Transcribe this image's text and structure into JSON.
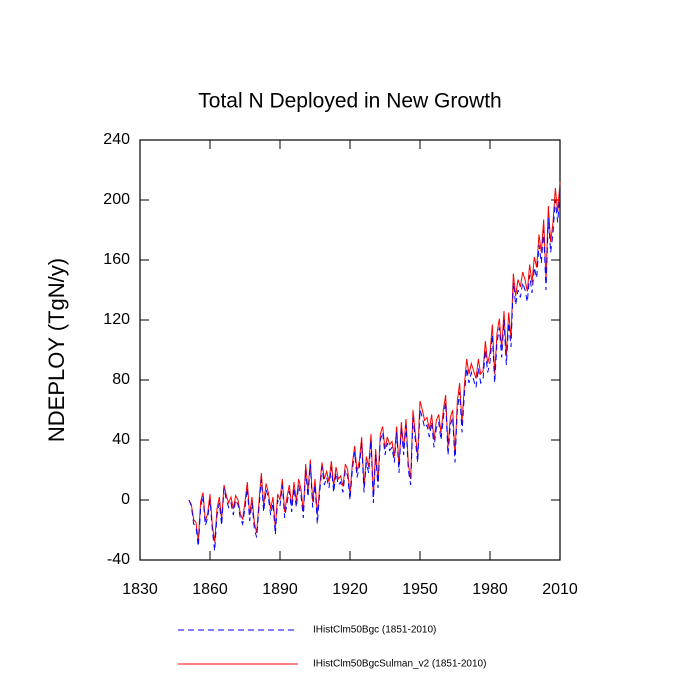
{
  "chart_data": {
    "type": "line",
    "title": "Total N Deployed in New Growth",
    "y_label": "NDEPLOY  (TgN/y)",
    "x": [
      1851,
      1852,
      1853,
      1854,
      1855,
      1856,
      1857,
      1858,
      1859,
      1860,
      1861,
      1862,
      1863,
      1864,
      1865,
      1866,
      1867,
      1868,
      1869,
      1870,
      1871,
      1872,
      1873,
      1874,
      1875,
      1876,
      1877,
      1878,
      1879,
      1880,
      1881,
      1882,
      1883,
      1884,
      1885,
      1886,
      1887,
      1888,
      1889,
      1890,
      1891,
      1892,
      1893,
      1894,
      1895,
      1896,
      1897,
      1898,
      1899,
      1900,
      1901,
      1902,
      1903,
      1904,
      1905,
      1906,
      1907,
      1908,
      1909,
      1910,
      1911,
      1912,
      1913,
      1914,
      1915,
      1916,
      1917,
      1918,
      1919,
      1920,
      1921,
      1922,
      1923,
      1924,
      1925,
      1926,
      1927,
      1928,
      1929,
      1930,
      1931,
      1932,
      1933,
      1934,
      1935,
      1936,
      1937,
      1938,
      1939,
      1940,
      1941,
      1942,
      1943,
      1944,
      1945,
      1946,
      1947,
      1948,
      1949,
      1950,
      1951,
      1952,
      1953,
      1954,
      1955,
      1956,
      1957,
      1958,
      1959,
      1960,
      1961,
      1962,
      1963,
      1964,
      1965,
      1966,
      1967,
      1968,
      1969,
      1970,
      1971,
      1972,
      1973,
      1974,
      1975,
      1976,
      1977,
      1978,
      1979,
      1980,
      1981,
      1982,
      1983,
      1984,
      1985,
      1986,
      1987,
      1988,
      1989,
      1990,
      1991,
      1992,
      1993,
      1994,
      1995,
      1996,
      1997,
      1998,
      1999,
      2000,
      2001,
      2002,
      2003,
      2004,
      2005,
      2006,
      2007,
      2008,
      2009,
      2010
    ],
    "series": [
      {
        "name": "IHistClm50BgcSulman_v2 (1851-2010)",
        "color": "#ff0000",
        "line_style": "solid",
        "values": [
          0,
          -3,
          -13,
          -15,
          -27,
          -1,
          5,
          -14,
          -9,
          4,
          -17,
          -28,
          -6,
          2,
          -13,
          10,
          3,
          -2,
          2,
          -6,
          3,
          0,
          -9,
          -13,
          -1,
          12,
          -10,
          2,
          -15,
          -22,
          -1,
          18,
          -4,
          11,
          5,
          -6,
          2,
          -19,
          4,
          0,
          14,
          -8,
          2,
          10,
          -4,
          12,
          -1,
          14,
          7,
          -8,
          24,
          6,
          27,
          -1,
          14,
          -10,
          9,
          25,
          14,
          19,
          12,
          26,
          9,
          22,
          14,
          16,
          9,
          24,
          20,
          4,
          24,
          36,
          19,
          26,
          42,
          9,
          29,
          22,
          44,
          2,
          34,
          12,
          44,
          49,
          34,
          42,
          37,
          39,
          29,
          49,
          22,
          52,
          34,
          54,
          24,
          14,
          60,
          44,
          29,
          66,
          60,
          53,
          55,
          47,
          57,
          40,
          53,
          57,
          45,
          60,
          70,
          35,
          55,
          60,
          30,
          66,
          78,
          51,
          76,
          94,
          84,
          91,
          86,
          81,
          94,
          84,
          86,
          106,
          91,
          98,
          117,
          84,
          111,
          121,
          101,
          126,
          96,
          125,
          108,
          151,
          136,
          147,
          142,
          152,
          147,
          139,
          157,
          145,
          162,
          155,
          177,
          165,
          187,
          147,
          196,
          172,
          185,
          208,
          192,
          212
        ]
      },
      {
        "name": "IHistClm50Bgc (1851-2010)",
        "color": "#0000ff",
        "line_style": "dashed",
        "values": [
          0,
          -4,
          -16,
          -18,
          -31,
          -5,
          3,
          -17,
          -12,
          0,
          -20,
          -34,
          -10,
          -2,
          -17,
          8,
          0,
          -5,
          -2,
          -10,
          0,
          -3,
          -12,
          -16,
          -5,
          8,
          -14,
          -2,
          -19,
          -25,
          -5,
          14,
          -8,
          7,
          2,
          -10,
          -2,
          -23,
          0,
          -4,
          10,
          -12,
          -2,
          6,
          -8,
          8,
          -5,
          10,
          3,
          -12,
          20,
          2,
          24,
          -5,
          10,
          -16,
          5,
          22,
          10,
          15,
          8,
          22,
          5,
          18,
          10,
          12,
          5,
          20,
          16,
          0,
          20,
          32,
          15,
          22,
          38,
          5,
          25,
          18,
          40,
          -2,
          30,
          8,
          40,
          45,
          30,
          38,
          33,
          35,
          25,
          45,
          18,
          48,
          30,
          50,
          20,
          10,
          55,
          40,
          25,
          60,
          55,
          48,
          50,
          42,
          52,
          35,
          48,
          52,
          40,
          55,
          65,
          30,
          50,
          55,
          25,
          60,
          72,
          45,
          70,
          88,
          78,
          85,
          80,
          75,
          88,
          78,
          80,
          100,
          85,
          92,
          110,
          78,
          105,
          115,
          95,
          120,
          90,
          118,
          102,
          145,
          130,
          140,
          135,
          145,
          140,
          132,
          150,
          138,
          155,
          148,
          170,
          158,
          180,
          140,
          188,
          165,
          178,
          200,
          185,
          205
        ]
      }
    ],
    "xlim": [
      1830,
      2010
    ],
    "xticks": [
      1830,
      1860,
      1890,
      1920,
      1950,
      1980,
      2010
    ],
    "ylim": [
      -40,
      240
    ],
    "yticks": [
      -40,
      0,
      40,
      80,
      120,
      160,
      200,
      240
    ]
  }
}
